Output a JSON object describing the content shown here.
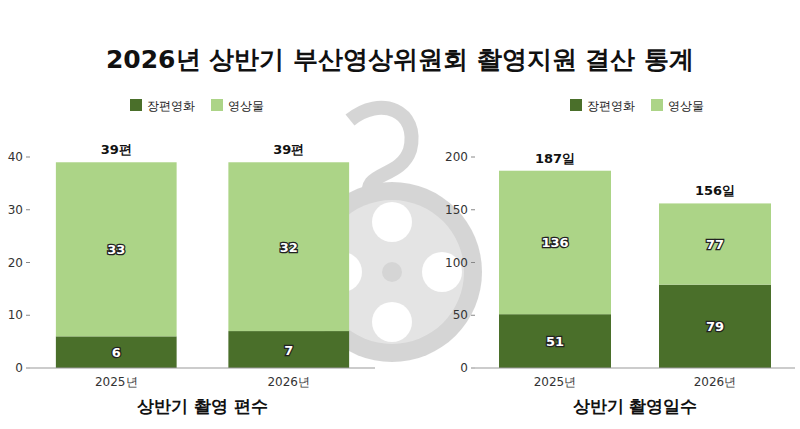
{
  "title": "2026년 상반기 부산영상위원회 촬영지원 결산 통계",
  "chart_data": [
    {
      "type": "bar",
      "stacked": true,
      "x_label": "상반기 촬영 편수",
      "categories": [
        "2025년",
        "2026년"
      ],
      "series": [
        {
          "name": "장편영화",
          "color": "#4a6f2a",
          "values": [
            6,
            7
          ]
        },
        {
          "name": "영상물",
          "color": "#acd487",
          "values": [
            33,
            32
          ]
        }
      ],
      "annotations": [
        "39편",
        "39편"
      ],
      "ylim": [
        0,
        40
      ],
      "yticks": [
        0,
        10,
        20,
        30,
        40
      ],
      "grid": false,
      "legend": "top-left",
      "data_labels": true
    },
    {
      "type": "bar",
      "stacked": true,
      "x_label": "상반기 촬영일수",
      "categories": [
        "2025년",
        "2026년"
      ],
      "series": [
        {
          "name": "장편영화",
          "color": "#4a6f2a",
          "values": [
            51,
            79
          ]
        },
        {
          "name": "영상물",
          "color": "#acd487",
          "values": [
            136,
            77
          ]
        }
      ],
      "annotations": [
        "187일",
        "156일"
      ],
      "ylim": [
        0,
        200
      ],
      "yticks": [
        0,
        50,
        100,
        150,
        200
      ],
      "grid": false,
      "legend": "top-left",
      "data_labels": true
    }
  ]
}
